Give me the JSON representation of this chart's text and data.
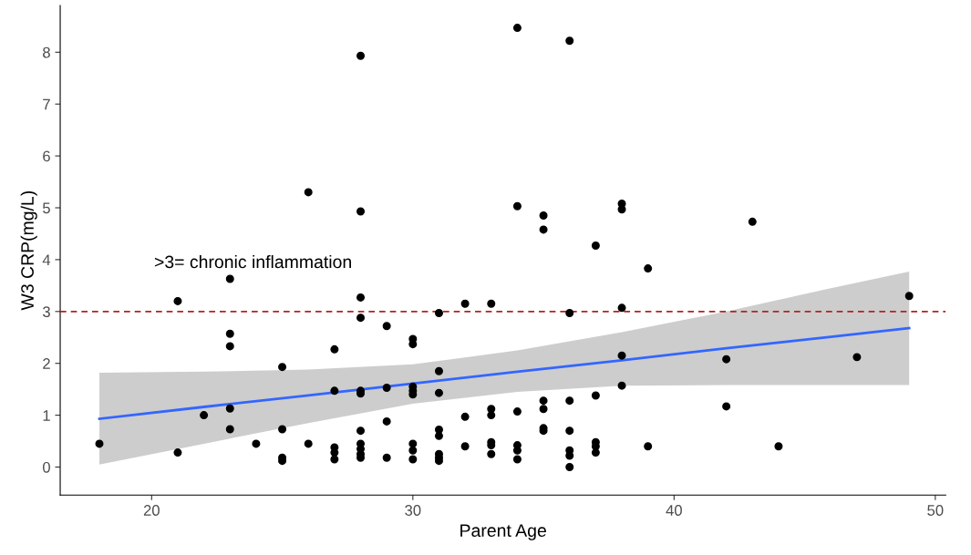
{
  "chart_data": {
    "type": "scatter",
    "xlabel": "Parent Age",
    "ylabel": "W3 CRP(mg/L)",
    "xlim": [
      16.5,
      50.4
    ],
    "ylim": [
      -0.54,
      8.9
    ],
    "xticks": [
      20,
      30,
      40,
      50
    ],
    "yticks": [
      0,
      1,
      2,
      3,
      4,
      5,
      6,
      7,
      8
    ],
    "grid": false,
    "series": [
      {
        "marker": "circle",
        "color": "#000000",
        "x": [
          18,
          21,
          21,
          22,
          23,
          23,
          23,
          23,
          23,
          24,
          25,
          25,
          25,
          25,
          26,
          26,
          27,
          27,
          27,
          27,
          27,
          28,
          28,
          28,
          28,
          28,
          28,
          28,
          28,
          28,
          28,
          28,
          29,
          29,
          29,
          29,
          30,
          30,
          30,
          30,
          30,
          30,
          30,
          30,
          31,
          31,
          31,
          31,
          31,
          31,
          31,
          31,
          32,
          32,
          32,
          33,
          33,
          33,
          33,
          33,
          33,
          34,
          34,
          34,
          34,
          34,
          34,
          35,
          35,
          35,
          35,
          35,
          35,
          36,
          36,
          36,
          36,
          36,
          36,
          36,
          37,
          37,
          37,
          37,
          37,
          38,
          38,
          38,
          38,
          38,
          39,
          39,
          42,
          42,
          43,
          44,
          47,
          49
        ],
        "values": [
          0.45,
          3.2,
          0.28,
          1.0,
          3.63,
          2.57,
          2.33,
          1.13,
          0.73,
          0.45,
          1.93,
          0.73,
          0.18,
          0.12,
          5.3,
          0.45,
          2.27,
          1.47,
          0.38,
          0.28,
          0.15,
          7.93,
          4.93,
          3.27,
          2.88,
          1.47,
          1.42,
          0.7,
          0.45,
          0.35,
          0.25,
          0.18,
          2.72,
          1.53,
          0.88,
          0.18,
          2.47,
          2.37,
          1.55,
          1.47,
          1.4,
          0.45,
          0.32,
          0.15,
          2.97,
          1.85,
          1.43,
          0.72,
          0.6,
          0.25,
          0.18,
          0.12,
          3.15,
          0.97,
          0.4,
          3.15,
          1.12,
          1.0,
          0.48,
          0.42,
          0.25,
          8.47,
          5.03,
          1.07,
          0.42,
          0.32,
          0.15,
          4.85,
          4.58,
          1.28,
          1.12,
          0.75,
          0.7,
          8.22,
          2.97,
          1.28,
          0.7,
          0.32,
          0.22,
          0.0,
          4.27,
          1.38,
          0.48,
          0.4,
          0.28,
          5.08,
          4.97,
          3.07,
          2.15,
          1.57,
          3.83,
          0.4,
          2.08,
          1.17,
          4.73,
          0.4,
          2.12,
          3.3
        ]
      },
      {
        "type": "line",
        "color": "#3366ff",
        "x": [
          18,
          22,
          26,
          30,
          34,
          38,
          42,
          46,
          49
        ],
        "values": [
          0.93,
          1.16,
          1.38,
          1.61,
          1.84,
          2.06,
          2.29,
          2.51,
          2.68
        ],
        "lower": [
          0.05,
          0.45,
          0.85,
          1.22,
          1.45,
          1.57,
          1.58,
          1.58,
          1.58
        ],
        "upper": [
          1.82,
          1.84,
          1.88,
          1.98,
          2.25,
          2.6,
          3.0,
          3.45,
          3.77
        ]
      }
    ],
    "ref_lines": [
      {
        "axis": "y",
        "value": 3,
        "label": ">3= chronic inflammation",
        "color": "#b22222",
        "line_style": "dashed"
      }
    ]
  }
}
